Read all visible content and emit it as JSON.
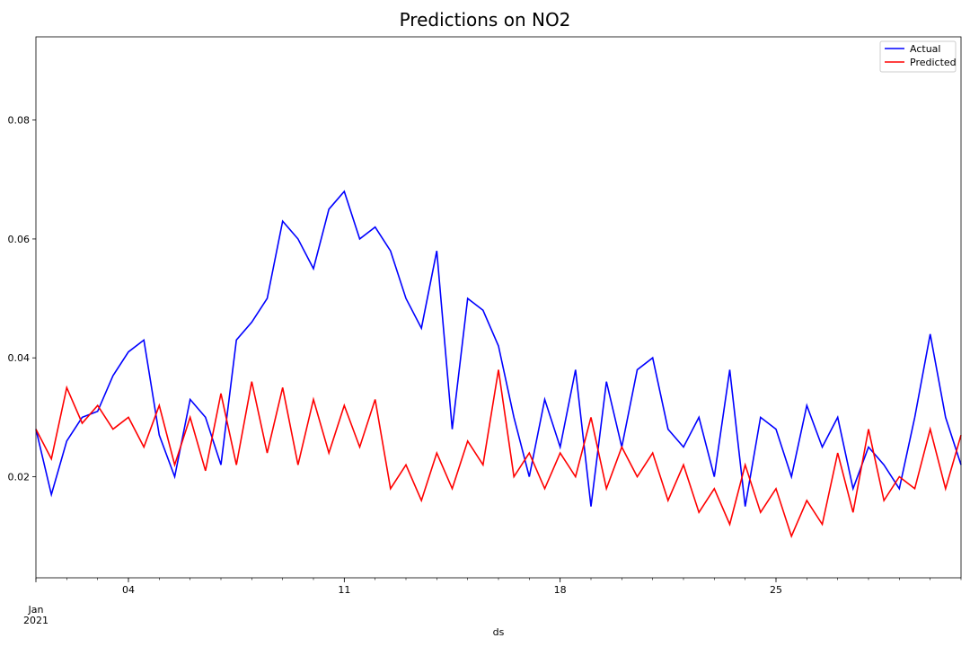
{
  "chart_data": {
    "type": "line",
    "title": "Predictions on NO2",
    "xlabel": "ds",
    "ylabel": "",
    "x_range": [
      "2021-01-01",
      "2021-01-31"
    ],
    "ylim": [
      0.003,
      0.094
    ],
    "y_ticks": [
      0.02,
      0.04,
      0.06,
      0.08
    ],
    "y_tick_labels": [
      "0.02",
      "0.04",
      "0.06",
      "0.08"
    ],
    "x_major_ticks": [
      "2021-01-04",
      "2021-01-11",
      "2021-01-18",
      "2021-01-25"
    ],
    "x_tick_labels": [
      "04",
      "11",
      "18",
      "25"
    ],
    "x_start_label": "Jan",
    "x_start_year": "2021",
    "legend": "top-right",
    "grid": false,
    "series": [
      {
        "name": "Actual",
        "color": "#0000ff",
        "x": [
          "2021-01-01",
          "2021-01-01 12:00",
          "2021-01-02",
          "2021-01-02 12:00",
          "2021-01-03",
          "2021-01-03 12:00",
          "2021-01-04",
          "2021-01-04 12:00",
          "2021-01-05",
          "2021-01-05 12:00",
          "2021-01-06",
          "2021-01-06 12:00",
          "2021-01-07",
          "2021-01-07 12:00",
          "2021-01-08",
          "2021-01-08 12:00",
          "2021-01-09",
          "2021-01-09 12:00",
          "2021-01-10",
          "2021-01-10 12:00",
          "2021-01-11",
          "2021-01-11 12:00",
          "2021-01-12",
          "2021-01-12 12:00",
          "2021-01-13",
          "2021-01-13 12:00",
          "2021-01-14",
          "2021-01-14 12:00",
          "2021-01-15",
          "2021-01-15 12:00",
          "2021-01-16",
          "2021-01-16 12:00",
          "2021-01-17",
          "2021-01-17 12:00",
          "2021-01-18",
          "2021-01-18 12:00",
          "2021-01-19",
          "2021-01-19 12:00",
          "2021-01-20",
          "2021-01-20 12:00",
          "2021-01-21",
          "2021-01-21 12:00",
          "2021-01-22",
          "2021-01-22 12:00",
          "2021-01-23",
          "2021-01-23 12:00",
          "2021-01-24",
          "2021-01-24 12:00",
          "2021-01-25",
          "2021-01-25 12:00",
          "2021-01-26",
          "2021-01-26 12:00",
          "2021-01-27",
          "2021-01-27 12:00",
          "2021-01-28",
          "2021-01-28 12:00",
          "2021-01-29",
          "2021-01-29 12:00",
          "2021-01-30",
          "2021-01-30 12:00",
          "2021-01-31"
        ],
        "values": [
          0.028,
          0.017,
          0.026,
          0.03,
          0.031,
          0.037,
          0.041,
          0.043,
          0.027,
          0.02,
          0.033,
          0.03,
          0.022,
          0.043,
          0.046,
          0.05,
          0.063,
          0.06,
          0.055,
          0.065,
          0.068,
          0.06,
          0.062,
          0.058,
          0.05,
          0.045,
          0.058,
          0.028,
          0.05,
          0.048,
          0.042,
          0.03,
          0.02,
          0.033,
          0.025,
          0.038,
          0.015,
          0.036,
          0.025,
          0.038,
          0.04,
          0.028,
          0.025,
          0.03,
          0.02,
          0.038,
          0.015,
          0.03,
          0.028,
          0.02,
          0.032,
          0.025,
          0.03,
          0.018,
          0.025,
          0.022,
          0.018,
          0.03,
          0.044,
          0.03,
          0.022
        ]
      },
      {
        "name": "Predicted",
        "color": "#ff0000",
        "x": [
          "2021-01-01",
          "2021-01-01 12:00",
          "2021-01-02",
          "2021-01-02 12:00",
          "2021-01-03",
          "2021-01-03 12:00",
          "2021-01-04",
          "2021-01-04 12:00",
          "2021-01-05",
          "2021-01-05 12:00",
          "2021-01-06",
          "2021-01-06 12:00",
          "2021-01-07",
          "2021-01-07 12:00",
          "2021-01-08",
          "2021-01-08 12:00",
          "2021-01-09",
          "2021-01-09 12:00",
          "2021-01-10",
          "2021-01-10 12:00",
          "2021-01-11",
          "2021-01-11 12:00",
          "2021-01-12",
          "2021-01-12 12:00",
          "2021-01-13",
          "2021-01-13 12:00",
          "2021-01-14",
          "2021-01-14 12:00",
          "2021-01-15",
          "2021-01-15 12:00",
          "2021-01-16",
          "2021-01-16 12:00",
          "2021-01-17",
          "2021-01-17 12:00",
          "2021-01-18",
          "2021-01-18 12:00",
          "2021-01-19",
          "2021-01-19 12:00",
          "2021-01-20",
          "2021-01-20 12:00",
          "2021-01-21",
          "2021-01-21 12:00",
          "2021-01-22",
          "2021-01-22 12:00",
          "2021-01-23",
          "2021-01-23 12:00",
          "2021-01-24",
          "2021-01-24 12:00",
          "2021-01-25",
          "2021-01-25 12:00",
          "2021-01-26",
          "2021-01-26 12:00",
          "2021-01-27",
          "2021-01-27 12:00",
          "2021-01-28",
          "2021-01-28 12:00",
          "2021-01-29",
          "2021-01-29 12:00",
          "2021-01-30",
          "2021-01-30 12:00",
          "2021-01-31"
        ],
        "values": [
          0.028,
          0.023,
          0.035,
          0.029,
          0.032,
          0.028,
          0.03,
          0.025,
          0.032,
          0.022,
          0.03,
          0.021,
          0.034,
          0.022,
          0.036,
          0.024,
          0.035,
          0.022,
          0.033,
          0.024,
          0.032,
          0.025,
          0.033,
          0.018,
          0.022,
          0.016,
          0.024,
          0.018,
          0.026,
          0.022,
          0.038,
          0.02,
          0.024,
          0.018,
          0.024,
          0.02,
          0.03,
          0.018,
          0.025,
          0.02,
          0.024,
          0.016,
          0.022,
          0.014,
          0.018,
          0.012,
          0.022,
          0.014,
          0.018,
          0.01,
          0.016,
          0.012,
          0.024,
          0.014,
          0.028,
          0.016,
          0.02,
          0.018,
          0.028,
          0.018,
          0.027
        ]
      }
    ]
  }
}
